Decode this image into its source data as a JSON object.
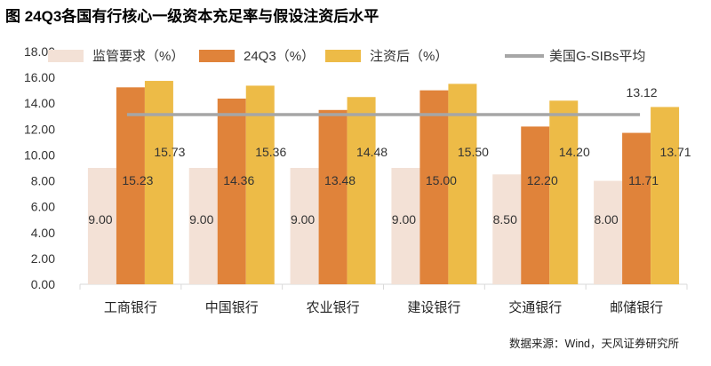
{
  "title": "图 24Q3各国有行核心一级资本充足率与假设注资后水平",
  "source": "数据来源：Wind，天风证券研究所",
  "colors": {
    "requirement": "#F3E1D6",
    "q3": "#E0833A",
    "after": "#EDBB47",
    "gsib": "#A6A6A6",
    "axis": "#D9D9D9"
  },
  "chart_data": {
    "type": "bar",
    "title": "24Q3各国有行核心一级资本充足率与假设注资后水平",
    "categories": [
      "工商银行",
      "中国银行",
      "农业银行",
      "建设银行",
      "交通银行",
      "邮储银行"
    ],
    "series": [
      {
        "name": "监管要求（%）",
        "values": [
          9.0,
          9.0,
          9.0,
          9.0,
          8.5,
          8.0
        ],
        "labels": [
          "9.00",
          "9.00",
          "9.00",
          "9.00",
          "8.50",
          "8.00"
        ]
      },
      {
        "name": "24Q3（%）",
        "values": [
          15.23,
          14.36,
          13.48,
          15.0,
          12.2,
          11.71
        ],
        "labels": [
          "15.23",
          "14.36",
          "13.48",
          "15.00",
          "12.20",
          "11.71"
        ]
      },
      {
        "name": "注资后（%）",
        "values": [
          15.73,
          15.36,
          14.48,
          15.5,
          14.2,
          13.71
        ],
        "labels": [
          "15.73",
          "15.36",
          "14.48",
          "15.50",
          "14.20",
          "13.71"
        ]
      }
    ],
    "line": {
      "name": "美国G-SIBs平均",
      "value": 13.12,
      "label": "13.12",
      "type": "line"
    },
    "ylim": [
      0,
      18
    ],
    "yticks": [
      "0.00",
      "2.00",
      "4.00",
      "6.00",
      "8.00",
      "10.00",
      "12.00",
      "14.00",
      "16.00",
      "18.00"
    ],
    "legend": [
      "监管要求（%）",
      "24Q3（%）",
      "注资后（%）",
      "美国G-SIBs平均"
    ],
    "legend_position": "top",
    "xlabel": "",
    "ylabel": ""
  }
}
